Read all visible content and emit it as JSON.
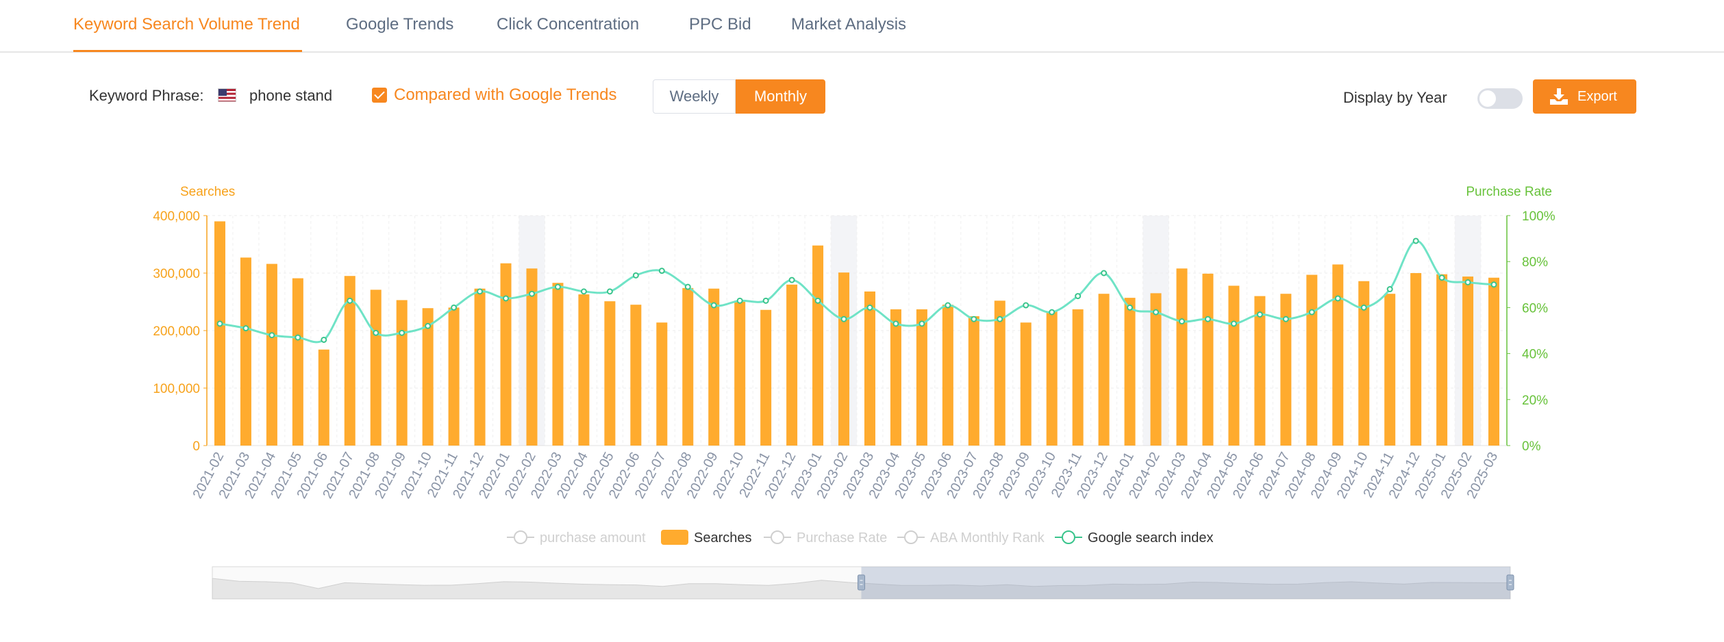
{
  "tabs": [
    {
      "label": "Keyword Search Volume Trend"
    },
    {
      "label": "Google Trends"
    },
    {
      "label": "Click Concentration"
    },
    {
      "label": "PPC Bid"
    },
    {
      "label": "Market Analysis"
    }
  ],
  "toolbar": {
    "keyword_label": "Keyword Phrase:",
    "keyword_value": "phone stand",
    "compare_label": "Compared with Google Trends",
    "compare_checked": true,
    "weekly_label": "Weekly",
    "monthly_label": "Monthly",
    "selected_period": "Monthly",
    "display_by_year_label": "Display by Year",
    "display_by_year_on": false,
    "export_label": "Export",
    "flag_icon": "us-flag-icon",
    "export_icon": "download-icon"
  },
  "colors": {
    "accent": "#f7871f",
    "bar": "#ffab2e",
    "line": "#6fe3c6",
    "right_axis": "#67c23a",
    "left_axis": "#f7a21b"
  },
  "chart_data": {
    "type": "bar",
    "categories": [
      "2021-02",
      "2021-03",
      "2021-04",
      "2021-05",
      "2021-06",
      "2021-07",
      "2021-08",
      "2021-09",
      "2021-10",
      "2021-11",
      "2021-12",
      "2022-01",
      "2022-02",
      "2022-03",
      "2022-04",
      "2022-05",
      "2022-06",
      "2022-07",
      "2022-08",
      "2022-09",
      "2022-10",
      "2022-11",
      "2022-12",
      "2023-01",
      "2023-02",
      "2023-03",
      "2023-04",
      "2023-05",
      "2023-06",
      "2023-07",
      "2023-08",
      "2023-09",
      "2023-10",
      "2023-11",
      "2023-12",
      "2024-01",
      "2024-02",
      "2024-03",
      "2024-04",
      "2024-05",
      "2024-06",
      "2024-07",
      "2024-08",
      "2024-09",
      "2024-10",
      "2024-11",
      "2024-12",
      "2025-01",
      "2025-02",
      "2025-03"
    ],
    "series": [
      {
        "name": "Searches",
        "type": "bar",
        "axis": "left",
        "values": [
          390000,
          327000,
          316000,
          291000,
          167000,
          295000,
          271000,
          253000,
          239000,
          240000,
          273000,
          317000,
          308000,
          283000,
          263000,
          251000,
          245000,
          214000,
          274000,
          273000,
          252000,
          236000,
          280000,
          348000,
          301000,
          268000,
          237000,
          237000,
          245000,
          225000,
          252000,
          214000,
          233000,
          237000,
          264000,
          257000,
          265000,
          308000,
          299000,
          278000,
          260000,
          264000,
          297000,
          315000,
          286000,
          264000,
          300000,
          298000,
          294000,
          292000
        ]
      },
      {
        "name": "Google search index",
        "type": "line",
        "axis": "right",
        "values": [
          53,
          51,
          48,
          47,
          46,
          63,
          49,
          49,
          52,
          60,
          67,
          64,
          66,
          69,
          67,
          67,
          74,
          76,
          69,
          61,
          63,
          63,
          72,
          63,
          55,
          60,
          53,
          53,
          61,
          55,
          55,
          61,
          58,
          65,
          75,
          60,
          58,
          54,
          55,
          53,
          57,
          55,
          58,
          64,
          60,
          68,
          89,
          73,
          71,
          70
        ]
      },
      {
        "name": "purchase amount",
        "visible": false
      },
      {
        "name": "Purchase Rate",
        "visible": false
      },
      {
        "name": "ABA Monthly Rank",
        "visible": false
      }
    ],
    "highlighted_categories": [
      "2022-02",
      "2023-02",
      "2024-02",
      "2025-02"
    ],
    "left_axis": {
      "label": "Searches",
      "ticks": [
        "0",
        "100,000",
        "200,000",
        "300,000",
        "400,000"
      ],
      "range": [
        0,
        400000
      ]
    },
    "right_axis": {
      "label": "Purchase Rate",
      "ticks": [
        "0%",
        "20%",
        "40%",
        "60%",
        "80%",
        "100%"
      ],
      "range": [
        0,
        100
      ]
    },
    "legend": [
      "purchase amount",
      "Searches",
      "Purchase Rate",
      "ABA Monthly Rank",
      "Google search index"
    ],
    "legend_position": "bottom",
    "grid": true,
    "zoom_window": {
      "start_fraction": 0.5,
      "end_fraction": 1.0
    }
  }
}
